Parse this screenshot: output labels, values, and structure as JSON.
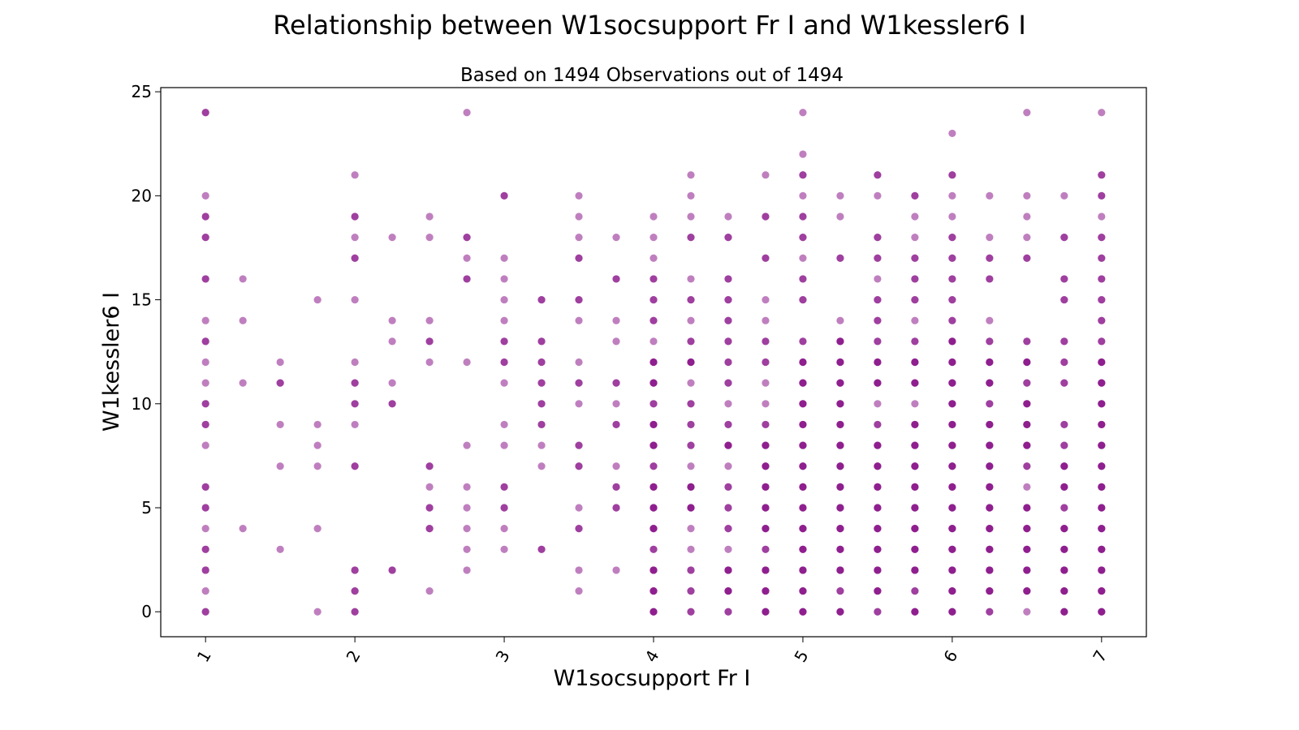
{
  "title": "Relationship between W1socsupport Fr I and W1kessler6 I",
  "chart_data": {
    "type": "scatter",
    "subtitle": "Based on 1494 Observations out of 1494",
    "xlabel": "W1socsupport Fr I",
    "ylabel": "W1kessler6 I",
    "xlim": [
      0.7,
      7.3
    ],
    "ylim": [
      -1.2,
      25.2
    ],
    "xticks": [
      1,
      2,
      3,
      4,
      5,
      6,
      7
    ],
    "yticks": [
      0,
      5,
      10,
      15,
      20,
      25
    ],
    "marker_color": "#800080",
    "marker_alpha": 0.5,
    "grid": false,
    "legend": "none",
    "points": [
      {
        "x": 1,
        "y": [
          0,
          0,
          1,
          2,
          2,
          3,
          3,
          4,
          5,
          5,
          6,
          6,
          8,
          9,
          9,
          10,
          10,
          11,
          12,
          13,
          13,
          14,
          16,
          16,
          18,
          18,
          19,
          19,
          20,
          24,
          24
        ]
      },
      {
        "x": 1.25,
        "y": [
          4,
          11,
          14,
          16
        ]
      },
      {
        "x": 1.5,
        "y": [
          3,
          7,
          9,
          11,
          11,
          12
        ]
      },
      {
        "x": 1.75,
        "y": [
          0,
          4,
          7,
          8,
          9,
          15
        ]
      },
      {
        "x": 2,
        "y": [
          0,
          0,
          1,
          1,
          2,
          2,
          7,
          7,
          9,
          10,
          10,
          11,
          11,
          12,
          15,
          17,
          17,
          18,
          19,
          19,
          21
        ]
      },
      {
        "x": 2.25,
        "y": [
          2,
          2,
          10,
          10,
          11,
          13,
          14,
          18
        ]
      },
      {
        "x": 2.5,
        "y": [
          1,
          4,
          4,
          5,
          5,
          6,
          7,
          7,
          12,
          13,
          13,
          14,
          18,
          19
        ]
      },
      {
        "x": 2.75,
        "y": [
          2,
          3,
          4,
          5,
          6,
          8,
          12,
          16,
          16,
          17,
          18,
          18,
          24
        ]
      },
      {
        "x": 3,
        "y": [
          3,
          4,
          5,
          5,
          6,
          6,
          8,
          9,
          11,
          12,
          12,
          13,
          13,
          14,
          15,
          16,
          17,
          20,
          20
        ]
      },
      {
        "x": 3.25,
        "y": [
          3,
          3,
          7,
          8,
          9,
          9,
          10,
          10,
          11,
          11,
          12,
          12,
          13,
          13,
          15,
          15
        ]
      },
      {
        "x": 3.5,
        "y": [
          1,
          2,
          4,
          4,
          5,
          7,
          7,
          8,
          8,
          10,
          11,
          11,
          12,
          14,
          15,
          15,
          17,
          17,
          18,
          19,
          20
        ]
      },
      {
        "x": 3.75,
        "y": [
          2,
          5,
          5,
          6,
          6,
          7,
          9,
          9,
          10,
          11,
          11,
          13,
          14,
          16,
          16,
          18
        ]
      },
      {
        "x": 4,
        "y": [
          0,
          0,
          0,
          1,
          1,
          1,
          2,
          2,
          2,
          3,
          3,
          4,
          4,
          4,
          5,
          5,
          5,
          6,
          6,
          6,
          7,
          7,
          8,
          8,
          8,
          9,
          9,
          9,
          10,
          10,
          11,
          11,
          11,
          12,
          12,
          12,
          13,
          14,
          14,
          15,
          15,
          16,
          16,
          17,
          18,
          19
        ]
      },
      {
        "x": 4.25,
        "y": [
          0,
          0,
          1,
          1,
          2,
          2,
          3,
          4,
          5,
          5,
          5,
          6,
          6,
          6,
          7,
          8,
          8,
          9,
          9,
          10,
          10,
          11,
          12,
          12,
          12,
          13,
          13,
          14,
          15,
          15,
          16,
          18,
          18,
          19,
          20,
          21
        ]
      },
      {
        "x": 4.5,
        "y": [
          0,
          0,
          1,
          1,
          1,
          2,
          2,
          2,
          3,
          4,
          4,
          5,
          5,
          6,
          6,
          7,
          8,
          8,
          8,
          9,
          9,
          10,
          11,
          11,
          12,
          12,
          13,
          13,
          14,
          14,
          15,
          15,
          16,
          16,
          18,
          18,
          19
        ]
      },
      {
        "x": 4.75,
        "y": [
          0,
          0,
          0,
          1,
          1,
          1,
          2,
          2,
          2,
          3,
          3,
          4,
          4,
          4,
          5,
          5,
          5,
          6,
          6,
          6,
          7,
          7,
          7,
          8,
          8,
          8,
          9,
          9,
          10,
          11,
          12,
          12,
          13,
          13,
          14,
          15,
          17,
          17,
          19,
          19,
          21
        ]
      },
      {
        "x": 5,
        "y": [
          0,
          0,
          0,
          1,
          1,
          1,
          2,
          2,
          2,
          3,
          3,
          3,
          4,
          4,
          4,
          5,
          5,
          5,
          6,
          6,
          6,
          7,
          7,
          7,
          8,
          8,
          8,
          9,
          9,
          9,
          10,
          10,
          10,
          11,
          11,
          11,
          12,
          12,
          12,
          13,
          13,
          15,
          15,
          16,
          16,
          17,
          18,
          18,
          19,
          19,
          20,
          21,
          21,
          22,
          24
        ]
      },
      {
        "x": 5.25,
        "y": [
          0,
          0,
          0,
          1,
          1,
          2,
          2,
          2,
          3,
          3,
          3,
          4,
          4,
          4,
          5,
          5,
          5,
          6,
          6,
          6,
          7,
          7,
          7,
          8,
          8,
          8,
          9,
          9,
          9,
          10,
          10,
          10,
          11,
          11,
          11,
          12,
          12,
          12,
          13,
          13,
          13,
          14,
          17,
          17,
          19,
          20
        ]
      },
      {
        "x": 5.5,
        "y": [
          0,
          0,
          1,
          1,
          1,
          2,
          2,
          2,
          3,
          3,
          3,
          4,
          4,
          4,
          5,
          5,
          5,
          6,
          6,
          6,
          7,
          7,
          7,
          8,
          8,
          8,
          9,
          9,
          10,
          11,
          11,
          11,
          12,
          12,
          12,
          13,
          13,
          14,
          14,
          15,
          15,
          16,
          17,
          17,
          18,
          18,
          20,
          21,
          21
        ]
      },
      {
        "x": 5.75,
        "y": [
          0,
          0,
          0,
          1,
          1,
          2,
          2,
          2,
          3,
          3,
          3,
          4,
          4,
          4,
          5,
          5,
          5,
          6,
          6,
          6,
          7,
          7,
          7,
          8,
          8,
          8,
          9,
          9,
          9,
          10,
          11,
          11,
          11,
          12,
          12,
          12,
          13,
          13,
          14,
          15,
          15,
          16,
          16,
          17,
          17,
          18,
          19,
          20,
          20
        ]
      },
      {
        "x": 6,
        "y": [
          0,
          0,
          0,
          1,
          1,
          1,
          2,
          2,
          2,
          3,
          3,
          3,
          4,
          4,
          4,
          5,
          5,
          5,
          6,
          6,
          6,
          7,
          7,
          7,
          8,
          8,
          8,
          9,
          9,
          9,
          10,
          10,
          10,
          11,
          11,
          11,
          12,
          12,
          12,
          13,
          13,
          13,
          14,
          14,
          15,
          15,
          16,
          16,
          17,
          17,
          18,
          18,
          19,
          20,
          21,
          21,
          23
        ]
      },
      {
        "x": 6.25,
        "y": [
          0,
          0,
          1,
          1,
          1,
          2,
          2,
          2,
          3,
          3,
          3,
          4,
          4,
          4,
          5,
          5,
          5,
          6,
          6,
          6,
          7,
          7,
          7,
          8,
          8,
          8,
          9,
          9,
          9,
          10,
          10,
          11,
          11,
          11,
          12,
          12,
          12,
          13,
          13,
          14,
          16,
          16,
          17,
          17,
          18,
          20
        ]
      },
      {
        "x": 6.5,
        "y": [
          0,
          1,
          1,
          1,
          2,
          2,
          2,
          3,
          3,
          3,
          4,
          4,
          4,
          5,
          5,
          5,
          6,
          7,
          7,
          8,
          8,
          8,
          9,
          9,
          9,
          10,
          10,
          10,
          11,
          11,
          12,
          12,
          12,
          13,
          13,
          17,
          17,
          18,
          19,
          20,
          24
        ]
      },
      {
        "x": 6.75,
        "y": [
          0,
          0,
          0,
          1,
          1,
          1,
          2,
          2,
          2,
          3,
          3,
          3,
          4,
          4,
          4,
          5,
          5,
          6,
          6,
          6,
          7,
          7,
          7,
          8,
          8,
          9,
          9,
          11,
          11,
          12,
          12,
          13,
          13,
          15,
          15,
          16,
          16,
          18,
          18,
          20
        ]
      },
      {
        "x": 7,
        "y": [
          0,
          0,
          0,
          1,
          1,
          1,
          2,
          2,
          2,
          3,
          3,
          3,
          4,
          4,
          4,
          5,
          5,
          5,
          6,
          6,
          6,
          7,
          7,
          7,
          8,
          8,
          8,
          9,
          9,
          9,
          10,
          10,
          10,
          11,
          11,
          11,
          12,
          12,
          12,
          13,
          13,
          14,
          14,
          15,
          15,
          16,
          16,
          17,
          17,
          18,
          18,
          19,
          20,
          20,
          21,
          21,
          24
        ]
      }
    ]
  }
}
